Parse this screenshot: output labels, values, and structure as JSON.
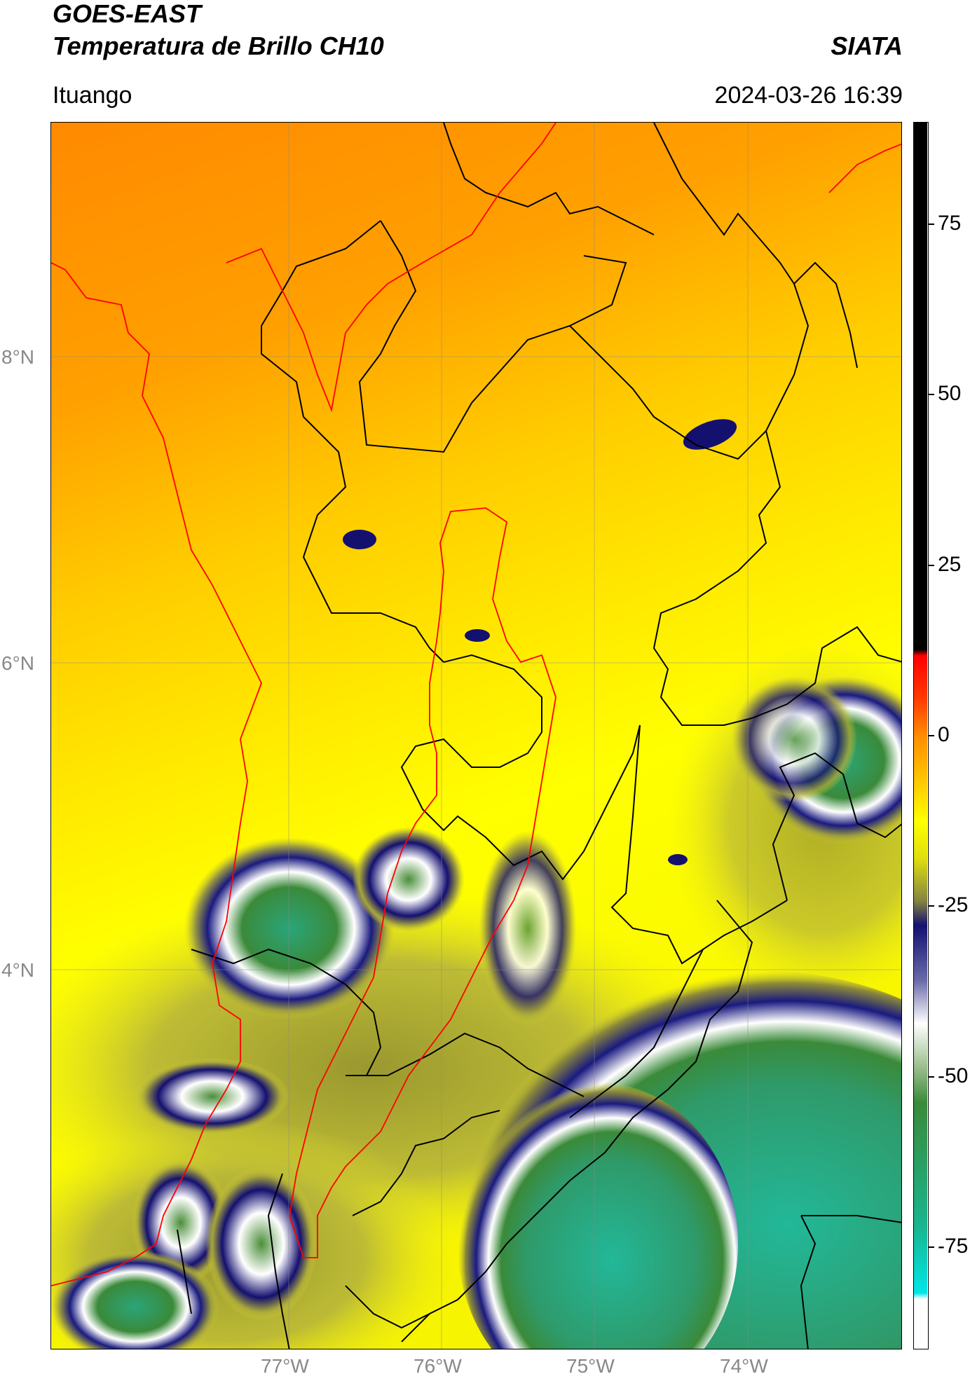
{
  "header": {
    "title_line1": "GOES-EAST",
    "title_line2": "Temperatura de Brillo CH10",
    "org": "SIATA",
    "location": "Ituango",
    "datetime": "2024-03-26 16:39"
  },
  "map": {
    "lat_labels": [
      "8°N",
      "6°N",
      "4°N"
    ],
    "lon_labels": [
      "77°W",
      "76°W",
      "75°W",
      "74°W"
    ],
    "colors": {
      "warm_orange": "#ff8c00",
      "yellow": "#ffff00",
      "olive": "#b9b63a",
      "navy": "#141070",
      "white": "#ffffff",
      "green": "#3a8a3a",
      "teal": "#1aa98c",
      "boundary_black": "#000000",
      "boundary_red": "#ff0000"
    }
  },
  "colorbar": {
    "ticks": [
      "75",
      "50",
      "25",
      "0",
      "-25",
      "-50",
      "-75"
    ],
    "tick_values": [
      75,
      50,
      25,
      0,
      -25,
      -50,
      -75
    ],
    "range": [
      -90,
      90
    ]
  }
}
